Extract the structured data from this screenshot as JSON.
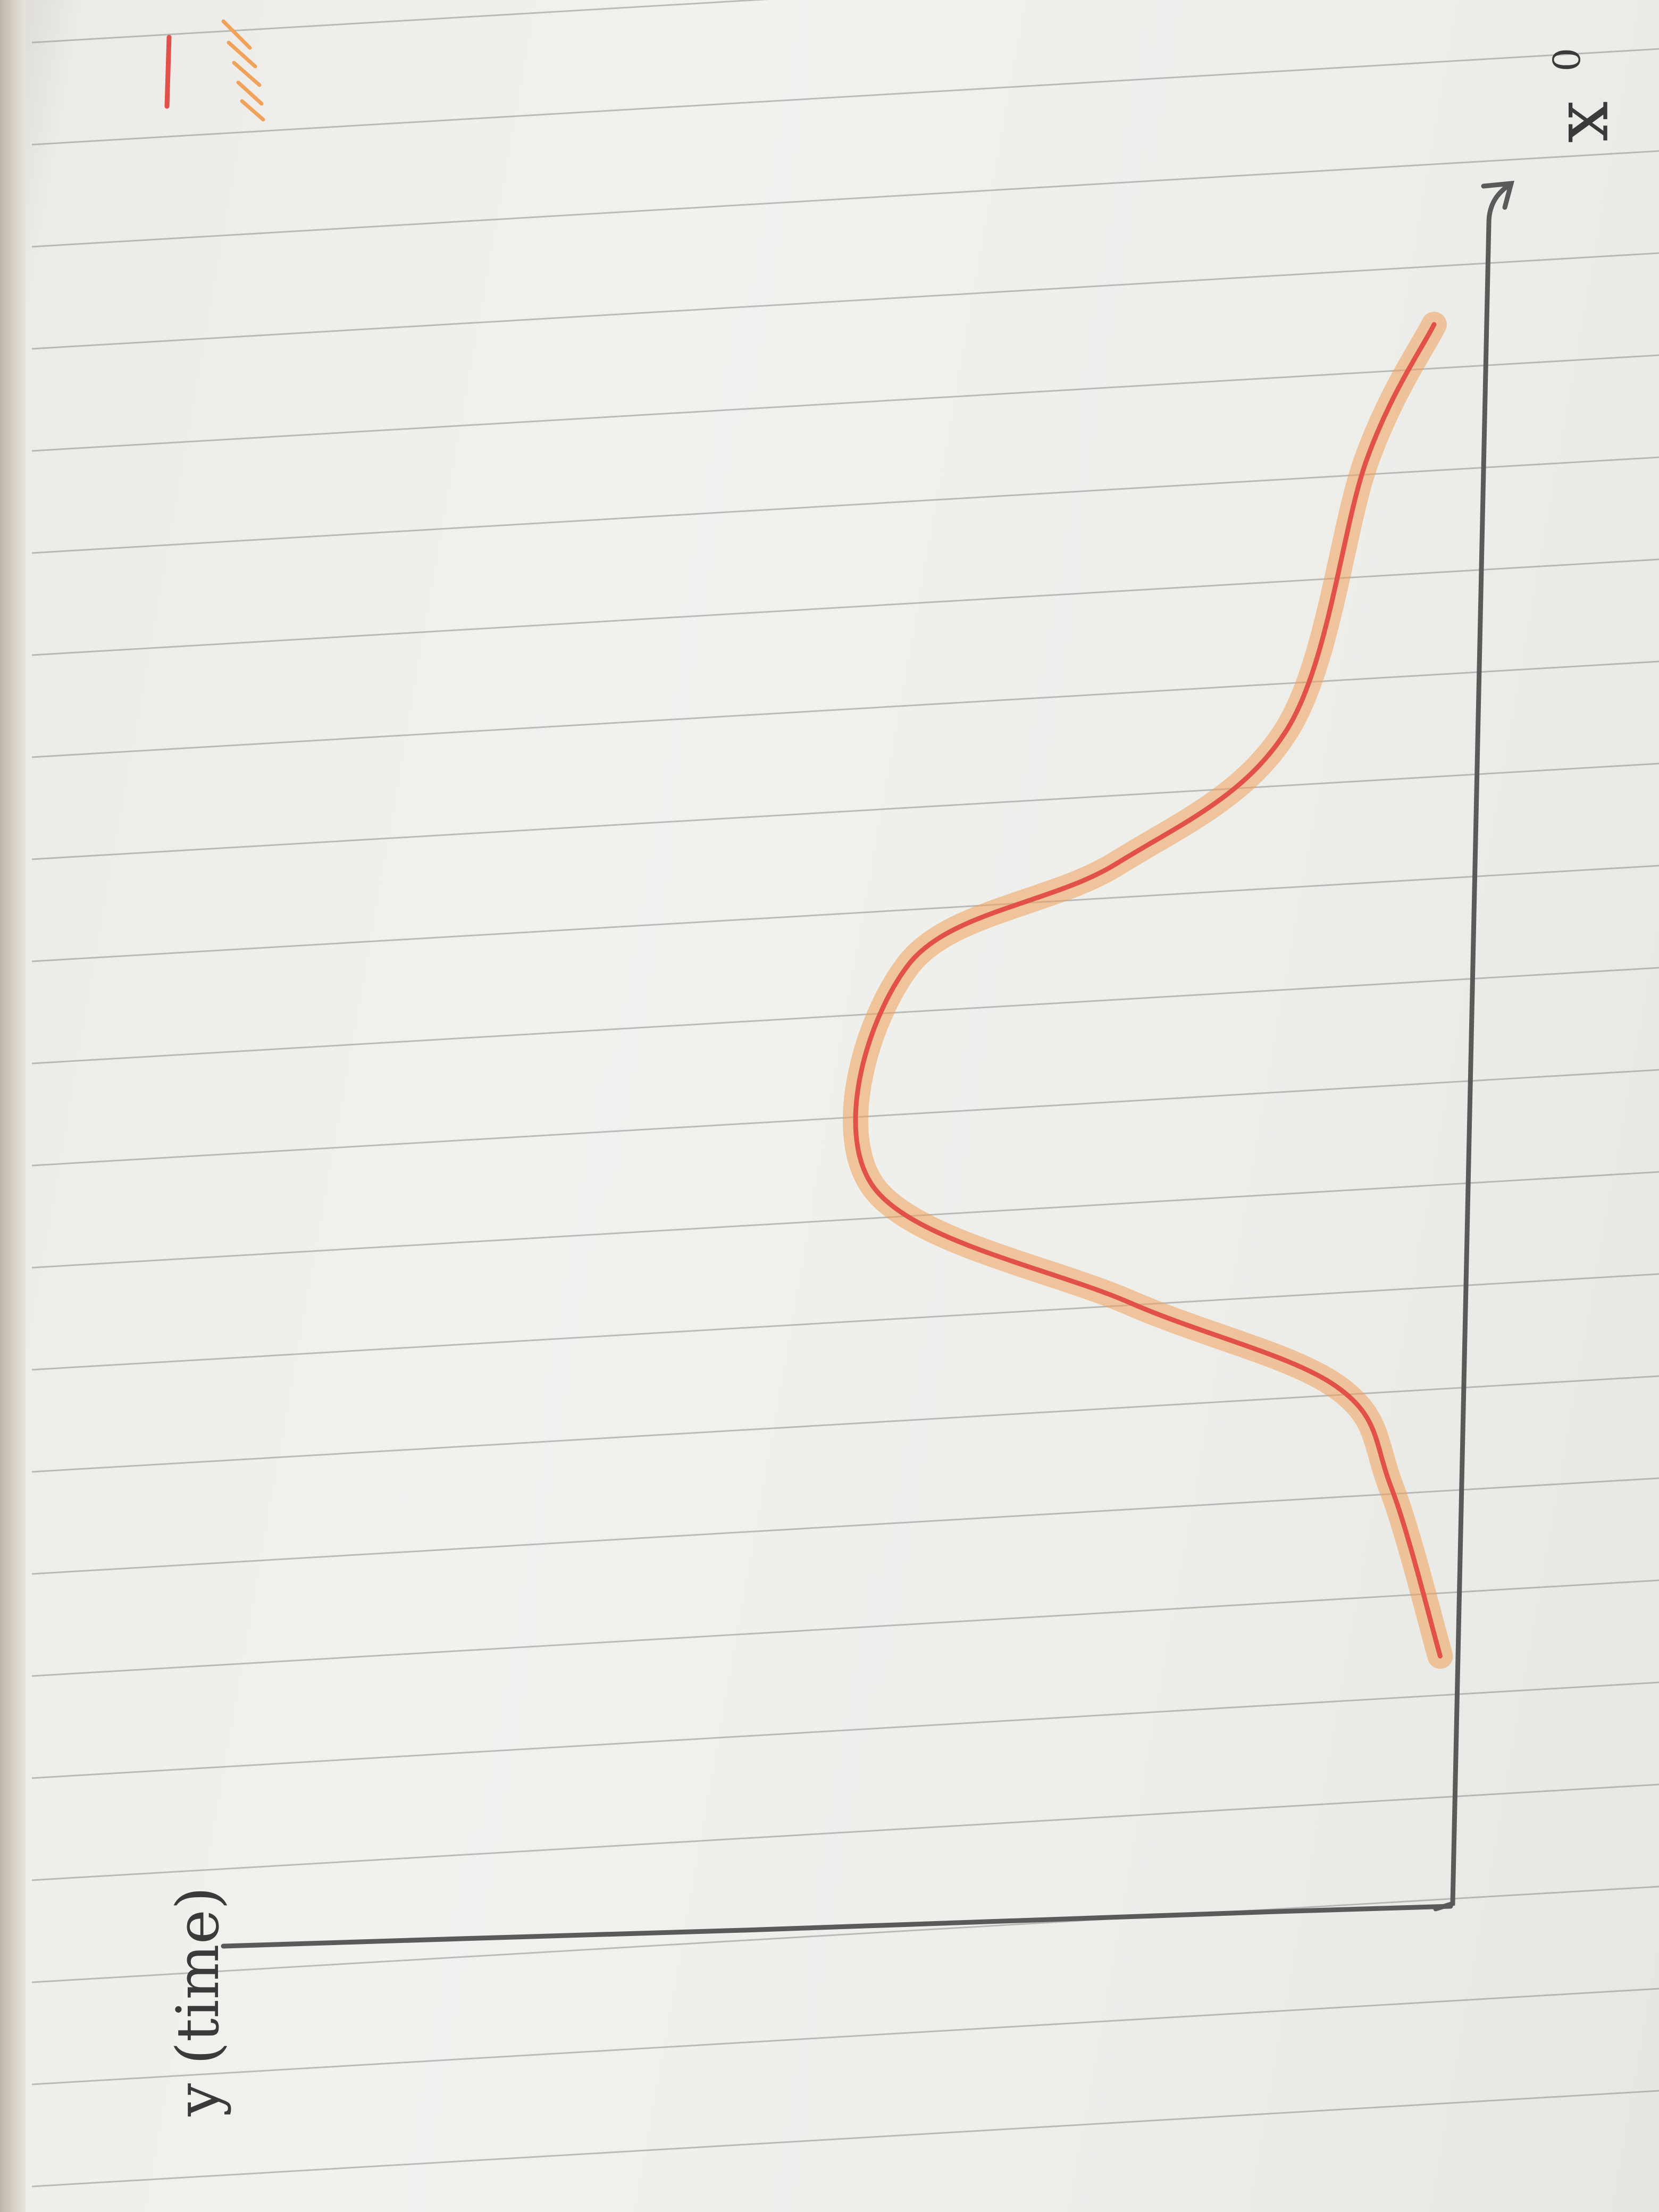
{
  "chart_data": {
    "type": "line",
    "title": "",
    "xlabel": "x",
    "x_tick_labels": [
      "0"
    ],
    "ylabel": "y (time)",
    "x_range": [
      0,
      10
    ],
    "y_range": [
      0,
      10
    ],
    "series": [
      {
        "name": "",
        "color": "#e2504a",
        "shading_color": "#f0a15a",
        "x": [
          1.5,
          2.5,
          3.1,
          3.6,
          4.3,
          5.6,
          6.2,
          7.0,
          8.6,
          9.4
        ],
        "y": [
          0.05,
          0.45,
          0.9,
          2.6,
          4.7,
          4.4,
          2.7,
          1.3,
          0.65,
          0.1
        ]
      }
    ],
    "grid": false
  },
  "legend": {
    "swatches": [
      {
        "color": "#e2504a",
        "style": "stroke"
      },
      {
        "color": "#f0a15a",
        "style": "hatch"
      }
    ]
  },
  "notebook": {
    "ruled_line_color": "#8e8e8e",
    "paper_color": "#efefec"
  }
}
